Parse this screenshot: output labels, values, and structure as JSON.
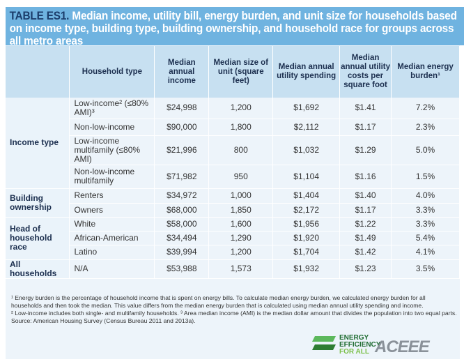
{
  "title": {
    "lead": "TABLE ES1.",
    "text": " Median income, utility bill, energy burden, and unit size for households based on income type, building type, building ownership, and household race for groups across all metro areas"
  },
  "headers": [
    "",
    "Household type",
    "Median annual income",
    "Median size of unit (square feet)",
    "Median annual utility spending",
    "Median annual utility costs per square foot",
    "Median energy burden¹"
  ],
  "groups": [
    {
      "label": "Income type",
      "rows": [
        [
          "Low-income² (≤80% AMI)³",
          "$24,998",
          "1,200",
          "$1,692",
          "$1.41",
          "7.2%"
        ],
        [
          "Non-low-income",
          "$90,000",
          "1,800",
          "$2,112",
          "$1.17",
          "2.3%"
        ],
        [
          "Low-income multifamily (≤80% AMI)",
          "$21,996",
          "800",
          "$1,032",
          "$1.29",
          "5.0%"
        ],
        [
          "Non-low-income multifamily",
          "$71,982",
          "950",
          "$1,104",
          "$1.16",
          "1.5%"
        ]
      ]
    },
    {
      "label": "Building ownership",
      "rows": [
        [
          "Renters",
          "$34,972",
          "1,000",
          "$1,404",
          "$1.40",
          "4.0%"
        ],
        [
          "Owners",
          "$68,000",
          "1,850",
          "$2,172",
          "$1.17",
          "3.3%"
        ]
      ]
    },
    {
      "label": "Head of household race",
      "rows": [
        [
          "White",
          "$58,000",
          "1,600",
          "$1,956",
          "$1.22",
          "3.3%"
        ],
        [
          "African-American",
          "$34,494",
          "1,290",
          "$1,920",
          "$1.49",
          "5.4%"
        ],
        [
          "Latino",
          "$39,994",
          "1,200",
          "$1,704",
          "$1.42",
          "4.1%"
        ]
      ]
    },
    {
      "label": "All households",
      "rows": [
        [
          "N/A",
          "$53,988",
          "1,573",
          "$1,932",
          "$1.23",
          "3.5%"
        ]
      ]
    }
  ],
  "footnotes": [
    "¹ Energy burden is the percentage of household income that is spent on energy bills. To calculate median energy burden, we calculated energy burden for all households and then took the median. This value differs from the median energy burden that is calculated using median annual utility spending and income.",
    "² Low-income includes both single- and multifamily households. ³ Area median income (AMI) is the median dollar amount that divides the population into two equal parts.",
    "Source: American Housing Survey (Census Bureau 2011 and 2013a)."
  ],
  "logos": {
    "eefa": [
      "ENERGY",
      "EFFICIENCY",
      "FOR ALL"
    ],
    "aceee": "ACEEE"
  },
  "colors": {
    "title_bg": "#6fb3e0",
    "header_bg": "#c7e0f1",
    "body_bg": "#edf4fa",
    "green": "#2e9e4a"
  }
}
